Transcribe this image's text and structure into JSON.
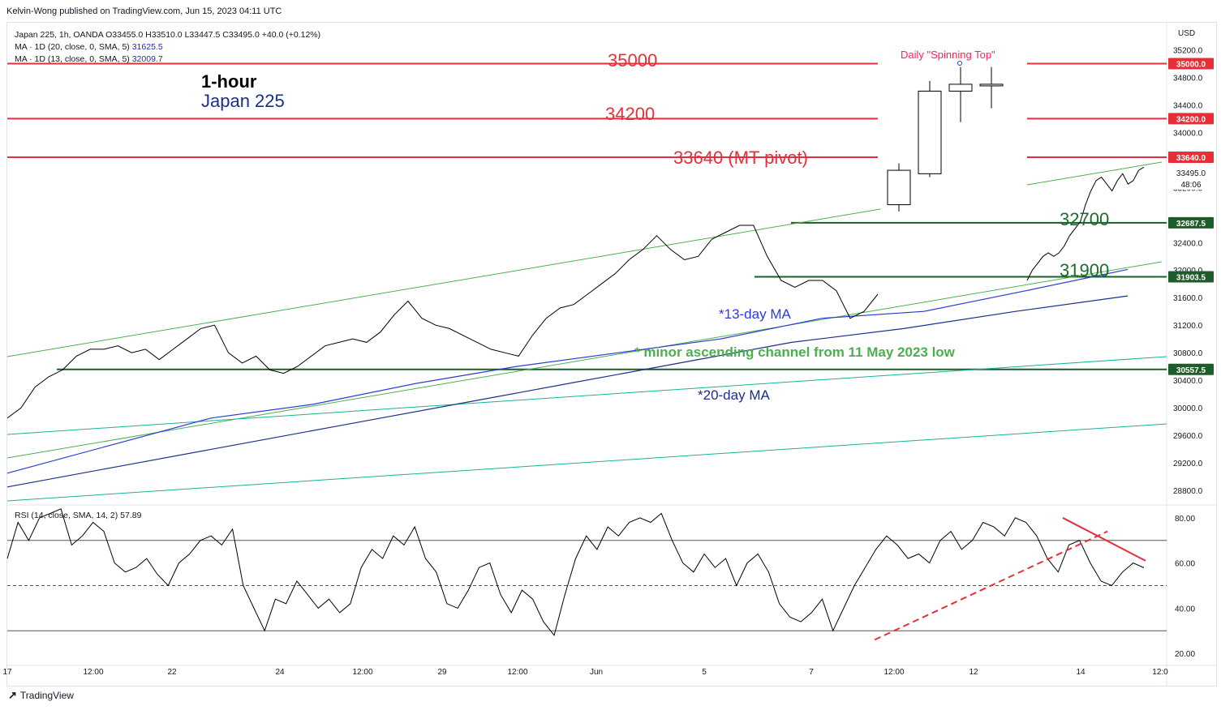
{
  "header": {
    "publisher": "Kelvin-Wong published on TradingView.com, Jun 15, 2023 04:11 UTC"
  },
  "legend": {
    "symbol_line": "Japan 225, 1h, OANDA  O33455.0  H33510.0  L33447.5  C33495.0  +40.0 (+0.12%)",
    "ma20_label": "MA · 1D (20, close, 0, SMA, 5)",
    "ma20_value": "31625.5",
    "ma13_label": "MA · 1D (13, close, 0, SMA, 5)",
    "ma13_value": "32009.7",
    "rsi_label": "RSI (14, close, SMA, 14, 2)",
    "rsi_value": "57.89"
  },
  "annotations": {
    "timeframe": "1-hour",
    "instrument": "Japan 225",
    "level_35000": "35000",
    "level_34200": "34200",
    "level_33640": "33640 (MT pivot)",
    "level_32700": "32700",
    "level_31900": "31900",
    "spinning_top": "Daily \"Spinning Top\"",
    "ma13_note": "*13-day MA",
    "ma20_note": "*20-day MA",
    "channel_note": "* minor ascending channel from 11 May 2023 low"
  },
  "footer": {
    "brand": "TradingView"
  },
  "colors": {
    "red_line": "#e5303a",
    "green_line": "#1e5c2a",
    "ma13": "#2b3bd6",
    "ma20": "#1a2f8a",
    "channel": "#4caf50",
    "teal": "#16b39a",
    "label_red": "#ff1f5a",
    "label_green": "#1e6b2e"
  },
  "chart_data": [
    {
      "type": "line",
      "title": "Japan 225, 1h, OANDA",
      "ylim": [
        28600,
        35500
      ],
      "y_ticks": [
        "35200.0",
        "34800.0",
        "34400.0",
        "34000.0",
        "33200.0",
        "32400.0",
        "32000.0",
        "31600.0",
        "31200.0",
        "30800.0",
        "30400.0",
        "30000.0",
        "29600.0",
        "29200.0",
        "28800.0"
      ],
      "currency": "USD",
      "x_ticks": [
        "17",
        "12:00",
        "22",
        "24",
        "12:00",
        "29",
        "12:00",
        "Jun",
        "5",
        "7",
        "12:00",
        "12",
        "14",
        "12:0"
      ],
      "price_tags": [
        {
          "label": "35000.0",
          "type": "red"
        },
        {
          "label": "34200.0",
          "type": "red"
        },
        {
          "label": "33640.0",
          "type": "red"
        },
        {
          "label": "33495.0",
          "type": "white"
        },
        {
          "label": "48:06",
          "type": "white"
        },
        {
          "label": "32687.5",
          "type": "green"
        },
        {
          "label": "31903.5",
          "type": "green"
        },
        {
          "label": "30557.5",
          "type": "green"
        }
      ],
      "horizontal_levels": [
        35000,
        34200,
        33640,
        32687.5,
        31903.5,
        30557.5
      ],
      "price_series": {
        "name": "Japan 225",
        "values": [
          29850,
          30000,
          30300,
          30450,
          30550,
          30750,
          30850,
          30850,
          30900,
          30800,
          30850,
          30700,
          30850,
          31000,
          31150,
          31200,
          30800,
          30650,
          30750,
          30550,
          30500,
          30600,
          30750,
          30900,
          30950,
          31000,
          30950,
          31100,
          31350,
          31550,
          31300,
          31200,
          31150,
          31050,
          30950,
          30850,
          30800,
          30750,
          31050,
          31300,
          31450,
          31500,
          31650,
          31800,
          31950,
          32150,
          32300,
          32500,
          32300,
          32150,
          32200,
          32450,
          32550,
          32650,
          32650,
          32200,
          31850,
          31750,
          31850,
          31850,
          31700,
          31300,
          31400,
          31650,
          31850,
          32000,
          32100,
          32200,
          32250,
          32200,
          32250,
          32350,
          32500,
          32600,
          32700,
          32950,
          33150,
          33300,
          33350,
          33250,
          33150,
          33300,
          33400,
          33250,
          33300,
          33450,
          33495
        ]
      },
      "daily_candles": [
        {
          "open": 32950,
          "high": 33550,
          "low": 32850,
          "close": 33450
        },
        {
          "open": 33400,
          "high": 34750,
          "low": 33350,
          "close": 34600
        },
        {
          "open": 34600,
          "high": 34950,
          "low": 34150,
          "close": 34700
        },
        {
          "open": 34700,
          "high": 34950,
          "low": 34350,
          "close": 34700
        }
      ],
      "ma13_series": {
        "name": "MA · 1D (13, close, 0, SMA, 5)",
        "values": [
          29050,
          29450,
          29850,
          30050,
          30350,
          30600,
          30800,
          31000,
          31300,
          31400,
          31700,
          32009.7
        ]
      },
      "ma20_series": {
        "name": "MA · 1D (20, close, 0, SMA, 5)",
        "values": [
          28850,
          29150,
          29450,
          29750,
          30050,
          30350,
          30650,
          30950,
          31150,
          31400,
          31625.5
        ]
      }
    },
    {
      "type": "line",
      "title": "RSI (14, close, SMA, 14, 2)",
      "ylim": [
        15,
        85
      ],
      "y_ticks": [
        "80.00",
        "60.00",
        "40.00",
        "20.00"
      ],
      "bands": [
        70,
        50,
        30
      ],
      "series": [
        {
          "name": "RSI",
          "values": [
            62,
            78,
            70,
            80,
            82,
            84,
            68,
            72,
            78,
            74,
            60,
            56,
            58,
            62,
            55,
            50,
            60,
            64,
            70,
            72,
            68,
            75,
            50,
            40,
            30,
            44,
            42,
            52,
            46,
            40,
            44,
            38,
            42,
            58,
            66,
            62,
            72,
            68,
            76,
            62,
            56,
            42,
            40,
            48,
            58,
            60,
            46,
            38,
            48,
            44,
            34,
            28,
            46,
            62,
            72,
            66,
            76,
            72,
            78,
            80,
            78,
            82,
            70,
            60,
            56,
            64,
            58,
            62,
            50,
            60,
            64,
            56,
            42,
            36,
            34,
            38,
            44,
            30,
            40,
            50,
            58,
            66,
            72,
            68,
            62,
            64,
            60,
            70,
            74,
            66,
            70,
            78,
            76,
            72,
            80,
            78,
            72,
            62,
            56,
            68,
            70,
            60,
            52,
            50,
            56,
            60,
            57.89
          ]
        }
      ]
    }
  ]
}
